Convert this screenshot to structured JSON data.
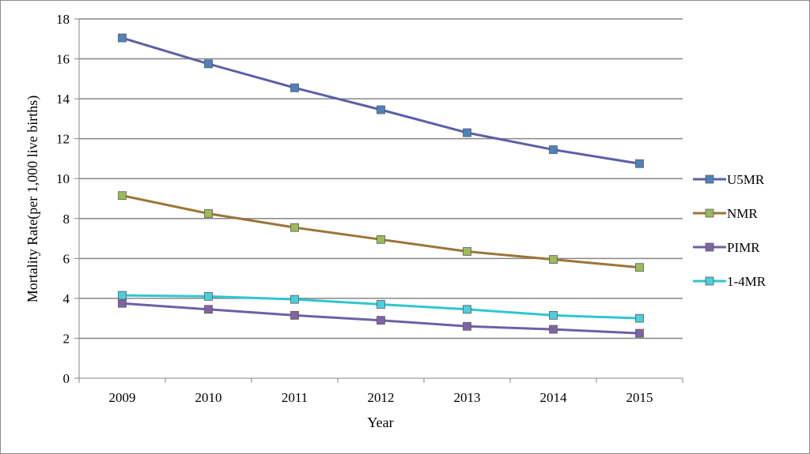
{
  "chart_data": {
    "type": "line",
    "xlabel": "Year",
    "ylabel": "Mortality Rate(per 1,000 live births)",
    "categories": [
      "2009",
      "2010",
      "2011",
      "2012",
      "2013",
      "2014",
      "2015"
    ],
    "ylim": [
      0,
      18
    ],
    "yticks": [
      "0",
      "2",
      "4",
      "6",
      "8",
      "10",
      "12",
      "14",
      "16",
      "18"
    ],
    "grid": "horizontal",
    "legend_position": "right",
    "series": [
      {
        "name": "U5MR",
        "values": [
          17.05,
          15.75,
          14.55,
          13.45,
          12.3,
          11.45,
          10.75
        ],
        "line_color": "#5B5EA6",
        "marker_color": "#4F81BD"
      },
      {
        "name": "NMR",
        "values": [
          9.15,
          8.25,
          7.55,
          6.95,
          6.35,
          5.95,
          5.55
        ],
        "line_color": "#9C7436",
        "marker_color": "#9BBB59"
      },
      {
        "name": "PIMR",
        "values": [
          3.75,
          3.45,
          3.15,
          2.9,
          2.6,
          2.45,
          2.25
        ],
        "line_color": "#6F5FA6",
        "marker_color": "#8064A2"
      },
      {
        "name": "1-4MR",
        "values": [
          4.15,
          4.1,
          3.95,
          3.7,
          3.45,
          3.15,
          3.0
        ],
        "line_color": "#2FC7CF",
        "marker_color": "#4BCFDB"
      }
    ]
  }
}
